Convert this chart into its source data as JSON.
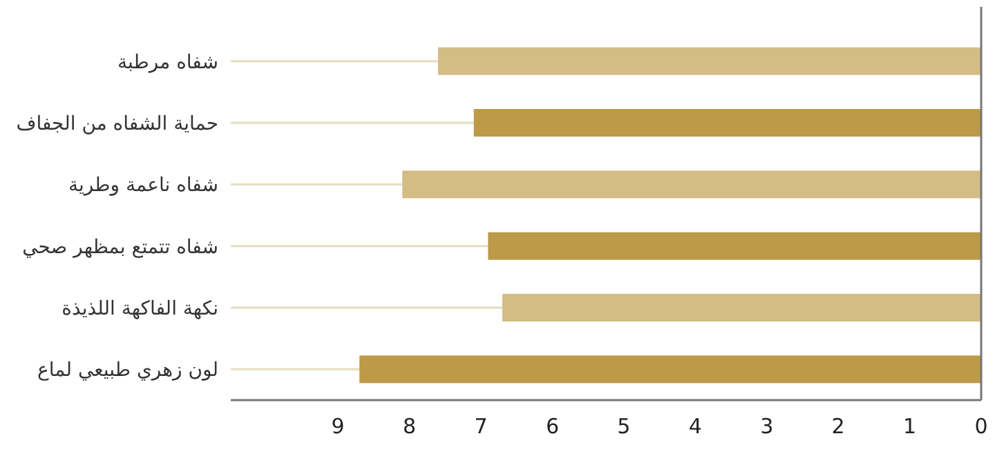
{
  "chart_data": {
    "type": "bar",
    "orientation": "horizontal",
    "categories": [
      "شفاه مرطبة",
      "حماية الشفاه من الجفاف",
      "شفاه ناعمة وطرية",
      "شفاه تتمتع بمظهر صحي",
      "نكهة الفاكهة اللذيذة",
      "لون زهري طبيعي لماع"
    ],
    "values": [
      7.6,
      7.1,
      8.1,
      6.9,
      6.7,
      8.7
    ],
    "colors": [
      "#d4bc85",
      "#bd9a48",
      "#d4bc85",
      "#bd9a48",
      "#d4bc85",
      "#bd9a48"
    ],
    "xlim": [
      10.5,
      0
    ],
    "xticks": [
      0,
      1,
      2,
      3,
      4,
      5,
      6,
      7,
      8,
      9
    ],
    "grid": "y"
  }
}
